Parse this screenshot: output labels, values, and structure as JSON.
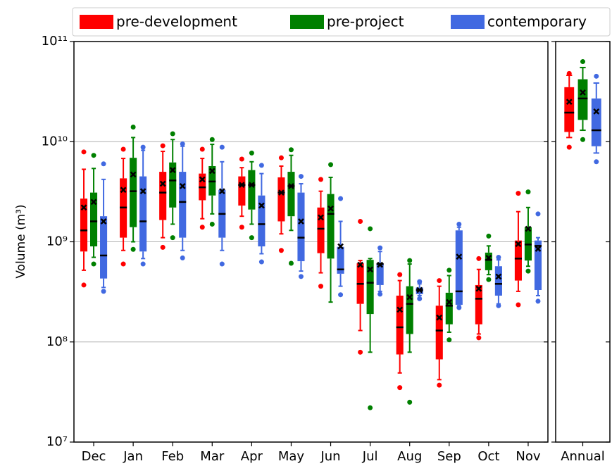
{
  "chart_data": [
    {
      "type": "box",
      "ylabel": "Volume (m³)",
      "yscale": "log",
      "grid": true,
      "legend": "top",
      "ylim": [
        10000000.0,
        100000000000.0
      ],
      "yticks": [
        {
          "value": 10000000.0,
          "label": "10⁷"
        },
        {
          "value": 100000000.0,
          "label": "10⁸"
        },
        {
          "value": 1000000000.0,
          "label": "10⁹"
        },
        {
          "value": 10000000000.0,
          "label": "10¹⁰"
        },
        {
          "value": 100000000000.0,
          "label": "10¹¹"
        }
      ],
      "categories": [
        "Dec",
        "Jan",
        "Feb",
        "Mar",
        "Apr",
        "May",
        "Jun",
        "Jul",
        "Aug",
        "Sep",
        "Oct",
        "Nov"
      ],
      "series": [
        {
          "name": "pre-development",
          "color": "#ff0000",
          "boxes": [
            {
              "whislo": 520000000.0,
              "q1": 800000000.0,
              "med": 1300000000.0,
              "q3": 2700000000.0,
              "whishi": 5300000000.0,
              "mean": 2200000000.0,
              "fliers": [
                7900000000.0,
                370000000.0
              ]
            },
            {
              "whislo": 820000000.0,
              "q1": 1100000000.0,
              "med": 2200000000.0,
              "q3": 4300000000.0,
              "whishi": 6800000000.0,
              "mean": 3300000000.0,
              "fliers": [
                8400000000.0,
                600000000.0
              ]
            },
            {
              "whislo": 1100000000.0,
              "q1": 1650000000.0,
              "med": 3100000000.0,
              "q3": 5000000000.0,
              "whishi": 8000000000.0,
              "mean": 3800000000.0,
              "fliers": [
                9100000000.0,
                880000000.0
              ]
            },
            {
              "whislo": 1700000000.0,
              "q1": 2600000000.0,
              "med": 3500000000.0,
              "q3": 4800000000.0,
              "whishi": 6800000000.0,
              "mean": 4200000000.0,
              "fliers": [
                8400000000.0,
                1400000000.0
              ]
            },
            {
              "whislo": 1800000000.0,
              "q1": 2300000000.0,
              "med": 3700000000.0,
              "q3": 4500000000.0,
              "whishi": 5500000000.0,
              "mean": 3700000000.0,
              "fliers": [
                6700000000.0,
                1400000000.0
              ]
            },
            {
              "whislo": 1200000000.0,
              "q1": 1600000000.0,
              "med": 3100000000.0,
              "q3": 4400000000.0,
              "whishi": 5700000000.0,
              "mean": 3100000000.0,
              "fliers": [
                6900000000.0,
                820000000.0
              ]
            },
            {
              "whislo": 490000000.0,
              "q1": 770000000.0,
              "med": 1350000000.0,
              "q3": 2200000000.0,
              "whishi": 3200000000.0,
              "mean": 1750000000.0,
              "fliers": [
                4200000000.0,
                360000000.0
              ]
            },
            {
              "whislo": 130000000.0,
              "q1": 240000000.0,
              "med": 380000000.0,
              "q3": 610000000.0,
              "whishi": 650000000.0,
              "mean": 590000000.0,
              "fliers": [
                1600000000.0,
                79000000.0
              ]
            },
            {
              "whislo": 49000000.0,
              "q1": 75000000.0,
              "med": 140000000.0,
              "q3": 290000000.0,
              "whishi": 410000000.0,
              "mean": 210000000.0,
              "fliers": [
                470000000.0,
                35000000.0
              ]
            },
            {
              "whislo": 42000000.0,
              "q1": 67000000.0,
              "med": 130000000.0,
              "q3": 230000000.0,
              "whishi": 360000000.0,
              "mean": 175000000.0,
              "fliers": [
                410000000.0,
                37000000.0
              ]
            },
            {
              "whislo": 120000000.0,
              "q1": 150000000.0,
              "med": 270000000.0,
              "q3": 370000000.0,
              "whishi": 530000000.0,
              "mean": 340000000.0,
              "fliers": [
                680000000.0,
                110000000.0
              ]
            },
            {
              "whislo": 320000000.0,
              "q1": 410000000.0,
              "med": 680000000.0,
              "q3": 1030000000.0,
              "whishi": 2000000000.0,
              "mean": 950000000.0,
              "fliers": [
                3050000000.0,
                235000000.0
              ]
            }
          ]
        },
        {
          "name": "pre-project",
          "color": "#008000",
          "boxes": [
            {
              "whislo": 700000000.0,
              "q1": 900000000.0,
              "med": 1600000000.0,
              "q3": 3100000000.0,
              "whishi": 5400000000.0,
              "mean": 2500000000.0,
              "fliers": [
                7300000000.0,
                600000000.0
              ]
            },
            {
              "whislo": 1000000000.0,
              "q1": 1400000000.0,
              "med": 3200000000.0,
              "q3": 6900000000.0,
              "whishi": 11000000000.0,
              "mean": 4700000000.0,
              "fliers": [
                14000000000.0,
                840000000.0
              ]
            },
            {
              "whislo": 1500000000.0,
              "q1": 2200000000.0,
              "med": 4100000000.0,
              "q3": 6200000000.0,
              "whishi": 10500000000.0,
              "mean": 5200000000.0,
              "fliers": [
                12000000000.0,
                1100000000.0
              ]
            },
            {
              "whislo": 1900000000.0,
              "q1": 2900000000.0,
              "med": 4000000000.0,
              "q3": 5700000000.0,
              "whishi": 9400000000.0,
              "mean": 5100000000.0,
              "fliers": [
                10500000000.0,
                1500000000.0
              ]
            },
            {
              "whislo": 1500000000.0,
              "q1": 2100000000.0,
              "med": 3700000000.0,
              "q3": 5200000000.0,
              "whishi": 6300000000.0,
              "mean": 3700000000.0,
              "fliers": [
                7700000000.0,
                1100000000.0
              ]
            },
            {
              "whislo": 1300000000.0,
              "q1": 1800000000.0,
              "med": 3600000000.0,
              "q3": 5000000000.0,
              "whishi": 7300000000.0,
              "mean": 3600000000.0,
              "fliers": [
                8300000000.0,
                610000000.0
              ]
            },
            {
              "whislo": 250000000.0,
              "q1": 680000000.0,
              "med": 1900000000.0,
              "q3": 3000000000.0,
              "whishi": 4400000000.0,
              "mean": 2150000000.0,
              "fliers": [
                5900000000.0
              ]
            },
            {
              "whislo": 79000000.0,
              "q1": 190000000.0,
              "med": 390000000.0,
              "q3": 660000000.0,
              "whishi": 680000000.0,
              "mean": 530000000.0,
              "fliers": [
                1350000000.0,
                22000000.0
              ]
            },
            {
              "whislo": 79000000.0,
              "q1": 120000000.0,
              "med": 240000000.0,
              "q3": 360000000.0,
              "whishi": 600000000.0,
              "mean": 280000000.0,
              "fliers": [
                650000000.0,
                25000000.0
              ]
            },
            {
              "whislo": 125000000.0,
              "q1": 150000000.0,
              "med": 230000000.0,
              "q3": 310000000.0,
              "whishi": 460000000.0,
              "mean": 250000000.0,
              "fliers": [
                520000000.0,
                105000000.0
              ]
            },
            {
              "whislo": 470000000.0,
              "q1": 520000000.0,
              "med": 660000000.0,
              "q3": 780000000.0,
              "whishi": 910000000.0,
              "mean": 690000000.0,
              "fliers": [
                1140000000.0,
                420000000.0
              ]
            },
            {
              "whislo": 570000000.0,
              "q1": 650000000.0,
              "med": 940000000.0,
              "q3": 1400000000.0,
              "whishi": 2200000000.0,
              "mean": 1350000000.0,
              "fliers": [
                3150000000.0,
                510000000.0
              ]
            }
          ]
        },
        {
          "name": "contemporary",
          "color": "#4169e1",
          "boxes": [
            {
              "whislo": 350000000.0,
              "q1": 430000000.0,
              "med": 730000000.0,
              "q3": 1800000000.0,
              "whishi": 4200000000.0,
              "mean": 1600000000.0,
              "fliers": [
                6000000000.0,
                320000000.0
              ]
            },
            {
              "whislo": 680000000.0,
              "q1": 800000000.0,
              "med": 1600000000.0,
              "q3": 4500000000.0,
              "whishi": 8200000000.0,
              "mean": 3200000000.0,
              "fliers": [
                8800000000.0,
                600000000.0
              ]
            },
            {
              "whislo": 820000000.0,
              "q1": 1100000000.0,
              "med": 2500000000.0,
              "q3": 5000000000.0,
              "whishi": 9000000000.0,
              "mean": 3600000000.0,
              "fliers": [
                9500000000.0,
                690000000.0
              ]
            },
            {
              "whislo": 820000000.0,
              "q1": 1100000000.0,
              "med": 1900000000.0,
              "q3": 3300000000.0,
              "whishi": 6300000000.0,
              "mean": 3200000000.0,
              "fliers": [
                8800000000.0,
                600000000.0
              ]
            },
            {
              "whislo": 760000000.0,
              "q1": 900000000.0,
              "med": 1500000000.0,
              "q3": 2900000000.0,
              "whishi": 4800000000.0,
              "mean": 2300000000.0,
              "fliers": [
                5800000000.0,
                630000000.0
              ]
            },
            {
              "whislo": 510000000.0,
              "q1": 640000000.0,
              "med": 1100000000.0,
              "q3": 3100000000.0,
              "whishi": 3800000000.0,
              "mean": 1600000000.0,
              "fliers": [
                4500000000.0,
                450000000.0
              ]
            },
            {
              "whislo": 360000000.0,
              "q1": 480000000.0,
              "med": 530000000.0,
              "q3": 890000000.0,
              "whishi": 1600000000.0,
              "mean": 900000000.0,
              "fliers": [
                2700000000.0,
                296000000.0
              ]
            },
            {
              "whislo": 320000000.0,
              "q1": 370000000.0,
              "med": 600000000.0,
              "q3": 610000000.0,
              "whishi": 800000000.0,
              "mean": 590000000.0,
              "fliers": [
                870000000.0,
                300000000.0
              ]
            },
            {
              "whislo": 290000000.0,
              "q1": 300000000.0,
              "med": 330000000.0,
              "q3": 350000000.0,
              "whishi": 380000000.0,
              "mean": 330000000.0,
              "fliers": [
                400000000.0,
                270000000.0
              ]
            },
            {
              "whislo": 230000000.0,
              "q1": 235000000.0,
              "med": 320000000.0,
              "q3": 1300000000.0,
              "whishi": 1400000000.0,
              "mean": 710000000.0,
              "fliers": [
                1500000000.0,
                220000000.0
              ]
            },
            {
              "whislo": 240000000.0,
              "q1": 290000000.0,
              "med": 380000000.0,
              "q3": 570000000.0,
              "whishi": 660000000.0,
              "mean": 450000000.0,
              "fliers": [
                700000000.0,
                230000000.0
              ]
            },
            {
              "whislo": 290000000.0,
              "q1": 330000000.0,
              "med": 910000000.0,
              "q3": 1030000000.0,
              "whishi": 1100000000.0,
              "mean": 850000000.0,
              "fliers": [
                1900000000.0,
                255000000.0
              ]
            }
          ]
        }
      ]
    },
    {
      "type": "box",
      "yscale": "log",
      "grid": false,
      "ylim": [
        10000000.0,
        100000000000.0
      ],
      "yticks": [
        10000000.0,
        100000000.0,
        1000000000.0,
        10000000000.0,
        100000000000.0
      ],
      "categories": [
        "Annual"
      ],
      "series": [
        {
          "color": "#ff0000",
          "boxes": [
            {
              "whislo": 11000000000.0,
              "q1": 12500000000.0,
              "med": 19500000000.0,
              "q3": 35000000000.0,
              "whishi": 46000000000.0,
              "mean": 25000000000.0,
              "fliers": [
                48000000000.0,
                8800000000.0
              ]
            }
          ]
        },
        {
          "color": "#008000",
          "boxes": [
            {
              "whislo": 13000000000.0,
              "q1": 16500000000.0,
              "med": 27000000000.0,
              "q3": 42000000000.0,
              "whishi": 55000000000.0,
              "mean": 31000000000.0,
              "fliers": [
                63000000000.0,
                10500000000.0
              ]
            }
          ]
        },
        {
          "color": "#4169e1",
          "boxes": [
            {
              "whislo": 7700000000.0,
              "q1": 9000000000.0,
              "med": 13000000000.0,
              "q3": 27000000000.0,
              "whishi": 38500000000.0,
              "mean": 20000000000.0,
              "fliers": [
                45000000000.0,
                6300000000.0
              ]
            }
          ]
        }
      ]
    }
  ]
}
